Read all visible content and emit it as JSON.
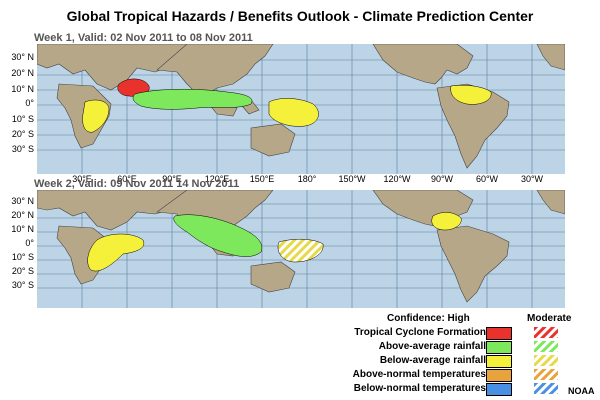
{
  "title": "Global Tropical Hazards / Benefits Outlook - Climate Prediction Center",
  "week1": {
    "label": "Week  1, Valid: 02 Nov 2011 to 08 Nov 2011"
  },
  "week2": {
    "label": "Week  2, Valid: 09 Nov 2011 14 Nov 2011"
  },
  "lat_labels": [
    "30° N",
    "20° N",
    "10° N",
    "0°",
    "10° S",
    "20° S",
    "30° S"
  ],
  "lon_labels": [
    "30°E",
    "60°E",
    "90°E",
    "120°E",
    "150°E",
    "180°",
    "150°W",
    "120°W",
    "90°W",
    "60°W",
    "30°W"
  ],
  "legend": {
    "header_high": "Confidence: High",
    "header_moderate": "Moderate",
    "items": [
      {
        "label": "Tropical Cyclone Formation",
        "color": "#e8322b"
      },
      {
        "label": "Above-average rainfall",
        "color": "#7de85b"
      },
      {
        "label": "Below-average rainfall",
        "color": "#f5f03a"
      },
      {
        "label": "Above-normal temperatures",
        "color": "#e8a33c"
      },
      {
        "label": "Below-normal temperatures",
        "color": "#4a90e2"
      }
    ]
  },
  "credit": "NOAA"
}
